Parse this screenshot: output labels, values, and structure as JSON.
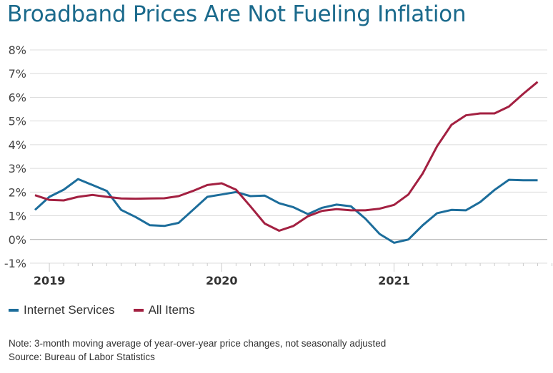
{
  "title": "Broadband Prices Are Not Fueling Inflation",
  "note": "Note: 3-month moving average of year-over-year price changes, not seasonally adjusted",
  "source": "Source: Bureau of Labor Statistics",
  "chart_data": {
    "type": "line",
    "title": "Broadband Prices Are Not Fueling Inflation",
    "xlabel": "",
    "ylabel": "",
    "ylim": [
      -1,
      8
    ],
    "y_ticks": [
      "8%",
      "7%",
      "6%",
      "5%",
      "4%",
      "3%",
      "2%",
      "1%",
      "0%",
      "-1%"
    ],
    "y_tick_values": [
      8,
      7,
      6,
      5,
      4,
      3,
      2,
      1,
      0,
      -1
    ],
    "x_tick_labels": [
      "2019",
      "2020",
      "2021"
    ],
    "x_tick_months": [
      "2019-01",
      "2020-01",
      "2021-01"
    ],
    "grid": true,
    "legend": "bottom-left",
    "x": [
      "2018-12",
      "2019-01",
      "2019-02",
      "2019-03",
      "2019-04",
      "2019-05",
      "2019-06",
      "2019-07",
      "2019-08",
      "2019-09",
      "2019-10",
      "2019-11",
      "2019-12",
      "2020-01",
      "2020-02",
      "2020-03",
      "2020-04",
      "2020-05",
      "2020-06",
      "2020-07",
      "2020-08",
      "2020-09",
      "2020-10",
      "2020-11",
      "2020-12",
      "2021-01",
      "2021-02",
      "2021-03",
      "2021-04",
      "2021-05",
      "2021-06",
      "2021-07",
      "2021-08",
      "2021-09",
      "2021-10",
      "2021-11"
    ],
    "series": [
      {
        "name": "Internet Services",
        "color": "#1c6d9b",
        "values": [
          1.25,
          1.8,
          2.1,
          2.55,
          2.3,
          2.05,
          1.25,
          0.95,
          0.6,
          0.57,
          0.7,
          1.25,
          1.8,
          1.9,
          2.0,
          1.83,
          1.85,
          1.53,
          1.36,
          1.07,
          1.34,
          1.47,
          1.4,
          0.88,
          0.23,
          -0.14,
          0.0,
          0.6,
          1.11,
          1.25,
          1.23,
          1.58,
          2.09,
          2.52,
          2.5,
          2.5
        ]
      },
      {
        "name": "All Items",
        "color": "#a32041",
        "values": [
          1.87,
          1.67,
          1.65,
          1.8,
          1.88,
          1.8,
          1.73,
          1.72,
          1.73,
          1.74,
          1.83,
          2.05,
          2.3,
          2.37,
          2.1,
          1.4,
          0.67,
          0.37,
          0.57,
          0.98,
          1.21,
          1.28,
          1.23,
          1.23,
          1.3,
          1.46,
          1.9,
          2.79,
          3.94,
          4.84,
          5.24,
          5.32,
          5.32,
          5.61,
          6.15,
          6.65
        ]
      }
    ]
  }
}
